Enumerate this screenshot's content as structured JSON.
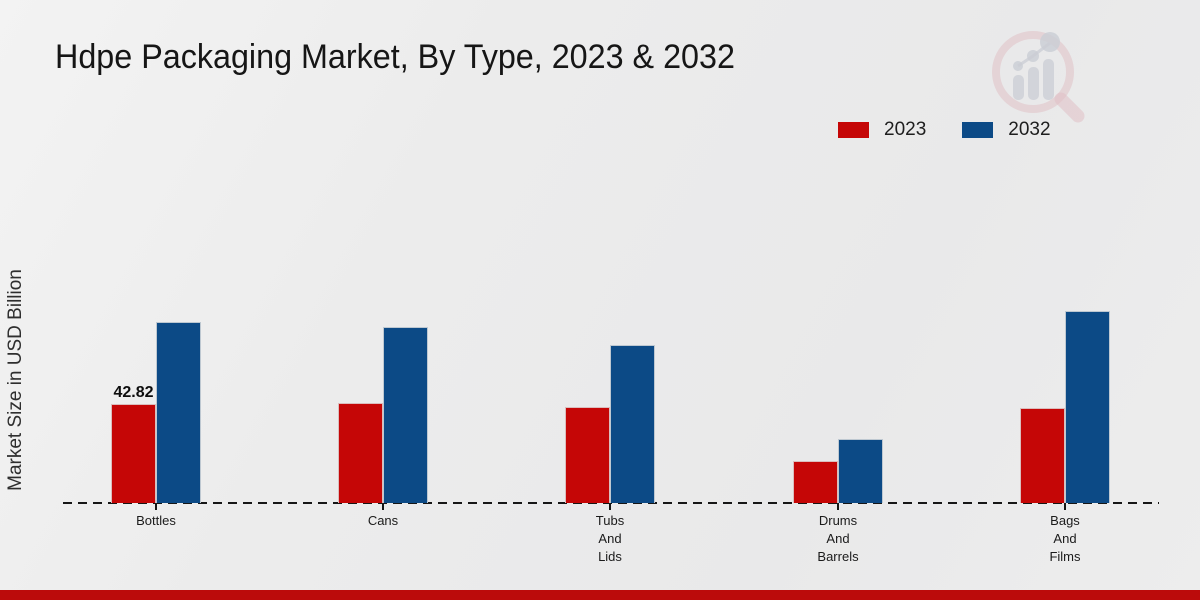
{
  "title": "Hdpe Packaging Market, By Type, 2023 & 2032",
  "y_axis_label": "Market Size in USD Billion",
  "legend": {
    "items": [
      {
        "label": "2023",
        "color": "#c50606"
      },
      {
        "label": "2032",
        "color": "#0c4a86"
      }
    ]
  },
  "watermark_icon": "magnifier-bar-chart-logo",
  "footer_bar_color": "#bb0b0b",
  "chart_data": {
    "type": "bar",
    "title": "Hdpe Packaging Market, By Type, 2023 & 2032",
    "xlabel": "",
    "ylabel": "Market Size in USD Billion",
    "categories": [
      "Bottles",
      "Cans",
      "Tubs And Lids",
      "Drums And Barrels",
      "Bags And Films"
    ],
    "category_label_lines": [
      [
        "Bottles"
      ],
      [
        "Cans"
      ],
      [
        "Tubs",
        "And",
        "Lids"
      ],
      [
        "Drums",
        "And",
        "Barrels"
      ],
      [
        "Bags",
        "And",
        "Films"
      ]
    ],
    "series": [
      {
        "name": "2023",
        "color": "#c50606",
        "values": [
          42.82,
          43.4,
          41.5,
          18.2,
          41.1
        ]
      },
      {
        "name": "2032",
        "color": "#0c4a86",
        "values": [
          78.2,
          76.0,
          68.3,
          27.7,
          83.0
        ]
      }
    ],
    "value_labels": [
      {
        "series_index": 0,
        "category_index": 0,
        "text": "42.82"
      }
    ],
    "ylim": [
      0,
      90
    ],
    "grid": false,
    "legend_position": "top-right",
    "baseline_style": "dashed"
  }
}
